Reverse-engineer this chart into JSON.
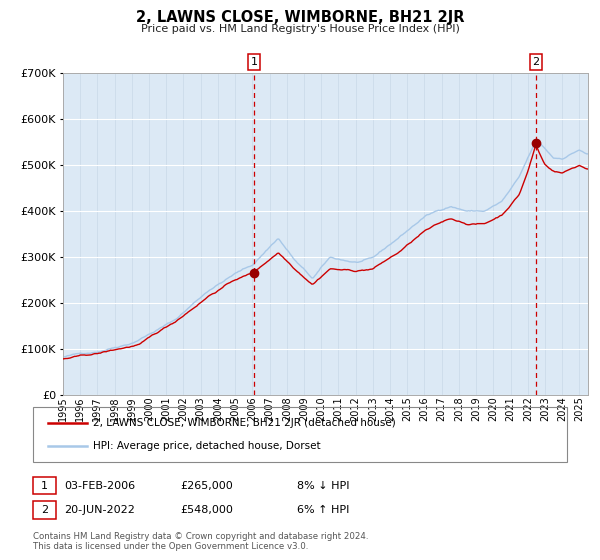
{
  "title": "2, LAWNS CLOSE, WIMBORNE, BH21 2JR",
  "subtitle": "Price paid vs. HM Land Registry's House Price Index (HPI)",
  "plot_bg_color": "#dce9f5",
  "hpi_color": "#a8c8e8",
  "price_color": "#cc0000",
  "marker_color": "#990000",
  "vline_color": "#cc0000",
  "sale1_date_num": 2006.09,
  "sale1_price": 265000,
  "sale2_date_num": 2022.47,
  "sale2_price": 548000,
  "ylim": [
    0,
    700000
  ],
  "xlim_start": 1995.0,
  "xlim_end": 2025.5,
  "yticks": [
    0,
    100000,
    200000,
    300000,
    400000,
    500000,
    600000,
    700000
  ],
  "xtick_years": [
    1995,
    1996,
    1997,
    1998,
    1999,
    2000,
    2001,
    2002,
    2003,
    2004,
    2005,
    2006,
    2007,
    2008,
    2009,
    2010,
    2011,
    2012,
    2013,
    2014,
    2015,
    2016,
    2017,
    2018,
    2019,
    2020,
    2021,
    2022,
    2023,
    2024,
    2025
  ],
  "legend_label_price": "2, LAWNS CLOSE, WIMBORNE, BH21 2JR (detached house)",
  "legend_label_hpi": "HPI: Average price, detached house, Dorset",
  "annot1_date": "03-FEB-2006",
  "annot1_price_str": "£265,000",
  "annot1_hpi_str": "8% ↓ HPI",
  "annot2_date": "20-JUN-2022",
  "annot2_price_str": "£548,000",
  "annot2_hpi_str": "6% ↑ HPI",
  "footer": "Contains HM Land Registry data © Crown copyright and database right 2024.\nThis data is licensed under the Open Government Licence v3.0."
}
